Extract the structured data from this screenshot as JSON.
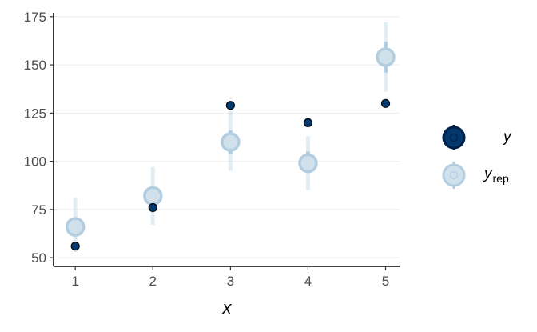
{
  "chart_data": {
    "type": "scatter",
    "xlabel": "x",
    "ylabel": "",
    "xlim": [
      0.72,
      5.18
    ],
    "ylim": [
      45.5,
      177
    ],
    "x_ticks": [
      1,
      2,
      3,
      4,
      5
    ],
    "y_ticks": [
      50,
      75,
      100,
      125,
      150,
      175
    ],
    "grid": "horizontal",
    "legend_position": "right",
    "colors": {
      "y": "#03396c",
      "y_stroke": "#011f4b",
      "yrep_fill": "#d1e1ec",
      "yrep_stroke": "#b3cde0",
      "yrep_inner_interval": "#b3cde0",
      "yrep_outer_interval": "#d1e1ec",
      "grid": "#ebebeb",
      "axis": "#000000"
    },
    "series": [
      {
        "name": "y",
        "points": [
          {
            "x": 1,
            "y": 56
          },
          {
            "x": 2,
            "y": 76
          },
          {
            "x": 3,
            "y": 129
          },
          {
            "x": 4,
            "y": 120
          },
          {
            "x": 5,
            "y": 130
          }
        ]
      },
      {
        "name": "y_rep",
        "points": [
          {
            "x": 1,
            "y": 66,
            "inner": [
              62,
              71
            ],
            "outer": [
              53,
              81
            ]
          },
          {
            "x": 2,
            "y": 82,
            "inner": [
              77,
              87
            ],
            "outer": [
              67,
              97
            ]
          },
          {
            "x": 3,
            "y": 110,
            "inner": [
              104,
              116
            ],
            "outer": [
              95,
              126
            ]
          },
          {
            "x": 4,
            "y": 99,
            "inner": [
              94,
              105
            ],
            "outer": [
              85,
              113
            ]
          },
          {
            "x": 5,
            "y": 154,
            "inner": [
              146,
              162
            ],
            "outer": [
              136,
              172
            ]
          }
        ]
      }
    ],
    "legend": [
      {
        "label": "y",
        "subscript": ""
      },
      {
        "label": "y",
        "subscript": "rep"
      }
    ]
  }
}
